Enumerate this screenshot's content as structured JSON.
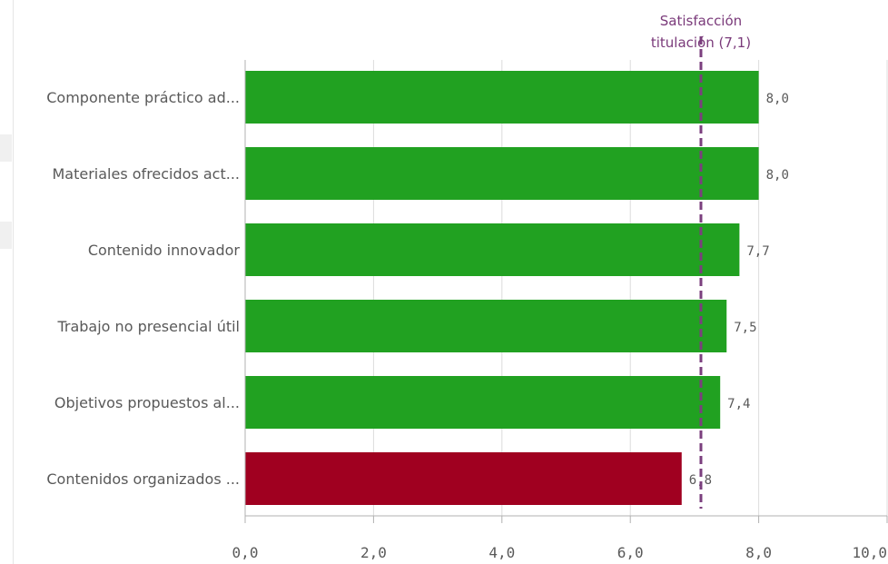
{
  "chart_data": {
    "type": "bar",
    "orientation": "horizontal",
    "categories": [
      "Componente práctico ad...",
      "Materiales ofrecidos act...",
      "Contenido innovador",
      "Trabajo no presencial útil",
      "Objetivos propuestos al...",
      "Contenidos organizados ..."
    ],
    "values": [
      8.0,
      8.0,
      7.7,
      7.5,
      7.4,
      6.8
    ],
    "value_labels": [
      "8,0",
      "8,0",
      "7,7",
      "7,5",
      "7,4",
      "6,8"
    ],
    "bar_colors": [
      "#21a121",
      "#21a121",
      "#21a121",
      "#21a121",
      "#21a121",
      "#a00020"
    ],
    "xlim": [
      0,
      10
    ],
    "x_ticks": [
      0,
      2,
      4,
      6,
      8,
      10
    ],
    "x_tick_labels": [
      "0,0",
      "2,0",
      "4,0",
      "6,0",
      "8,0",
      "10,0"
    ],
    "grid": true,
    "reference_line": {
      "value": 7.1,
      "label_line1": "Satisfacción",
      "label_line2": "titulación (7,1)",
      "color": "#7b3f7e",
      "style": "dashed"
    }
  }
}
